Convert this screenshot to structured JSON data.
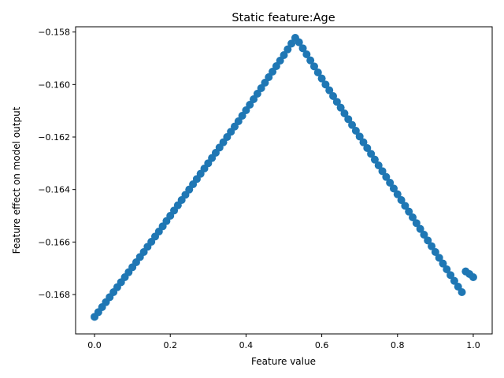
{
  "chart_data": {
    "type": "scatter",
    "title": "Static feature:Age",
    "xlabel": "Feature value",
    "ylabel": "Feature effect on model output",
    "xlim": [
      -0.05,
      1.05
    ],
    "ylim": [
      -0.1695,
      -0.1578
    ],
    "xticks": [
      0.0,
      0.2,
      0.4,
      0.6,
      0.8,
      1.0
    ],
    "xtick_labels": [
      "0.0",
      "0.2",
      "0.4",
      "0.6",
      "0.8",
      "1.0"
    ],
    "yticks": [
      -0.168,
      -0.166,
      -0.164,
      -0.162,
      -0.16,
      -0.158
    ],
    "ytick_labels": [
      "−0.168",
      "−0.166",
      "−0.164",
      "−0.162",
      "−0.160",
      "−0.158"
    ],
    "grid": false,
    "marker_color": "#1f77b4",
    "series": [
      {
        "x": [
          0.0,
          0.01,
          0.02,
          0.03,
          0.04,
          0.05,
          0.06,
          0.07,
          0.08,
          0.09,
          0.1,
          0.11,
          0.12,
          0.13,
          0.14,
          0.15,
          0.16,
          0.17,
          0.18,
          0.19,
          0.2,
          0.21,
          0.22,
          0.23,
          0.24,
          0.25,
          0.26,
          0.27,
          0.28,
          0.29,
          0.3,
          0.31,
          0.32,
          0.33,
          0.34,
          0.35,
          0.36,
          0.37,
          0.38,
          0.39,
          0.4,
          0.41,
          0.42,
          0.43,
          0.44,
          0.45,
          0.46,
          0.47,
          0.48,
          0.49,
          0.5,
          0.51,
          0.52,
          0.53,
          0.54,
          0.55,
          0.56,
          0.57,
          0.58,
          0.59,
          0.6,
          0.61,
          0.62,
          0.63,
          0.64,
          0.65,
          0.66,
          0.67,
          0.68,
          0.69,
          0.7,
          0.71,
          0.72,
          0.73,
          0.74,
          0.75,
          0.76,
          0.77,
          0.78,
          0.79,
          0.8,
          0.81,
          0.82,
          0.83,
          0.84,
          0.85,
          0.86,
          0.87,
          0.88,
          0.89,
          0.9,
          0.91,
          0.92,
          0.93,
          0.94,
          0.95,
          0.96,
          0.97,
          0.98,
          0.99,
          1.0
        ],
        "y": [
          -0.16885,
          -0.16867,
          -0.16848,
          -0.16829,
          -0.1681,
          -0.16791,
          -0.16772,
          -0.16753,
          -0.16734,
          -0.16715,
          -0.16696,
          -0.16677,
          -0.16657,
          -0.16638,
          -0.16618,
          -0.16599,
          -0.16579,
          -0.1656,
          -0.1654,
          -0.1652,
          -0.165,
          -0.1648,
          -0.1646,
          -0.1644,
          -0.1642,
          -0.164,
          -0.1638,
          -0.1636,
          -0.1634,
          -0.1632,
          -0.163,
          -0.1628,
          -0.1626,
          -0.1624,
          -0.1622,
          -0.162,
          -0.1618,
          -0.1616,
          -0.1614,
          -0.16119,
          -0.16098,
          -0.16077,
          -0.16056,
          -0.16035,
          -0.16014,
          -0.15993,
          -0.15972,
          -0.15951,
          -0.1593,
          -0.15909,
          -0.15888,
          -0.15866,
          -0.15844,
          -0.15822,
          -0.15839,
          -0.15862,
          -0.15885,
          -0.15908,
          -0.15931,
          -0.15954,
          -0.15977,
          -0.16,
          -0.16022,
          -0.16044,
          -0.16066,
          -0.16088,
          -0.1611,
          -0.16132,
          -0.16154,
          -0.16176,
          -0.16198,
          -0.1622,
          -0.16242,
          -0.16264,
          -0.16286,
          -0.16308,
          -0.1633,
          -0.16352,
          -0.16374,
          -0.16396,
          -0.16418,
          -0.1644,
          -0.16462,
          -0.16484,
          -0.16506,
          -0.16528,
          -0.1655,
          -0.16572,
          -0.16594,
          -0.16616,
          -0.16638,
          -0.1666,
          -0.16682,
          -0.16704,
          -0.16726,
          -0.16748,
          -0.1677,
          -0.16791,
          -0.16712,
          -0.16722,
          -0.16734
        ]
      }
    ]
  }
}
